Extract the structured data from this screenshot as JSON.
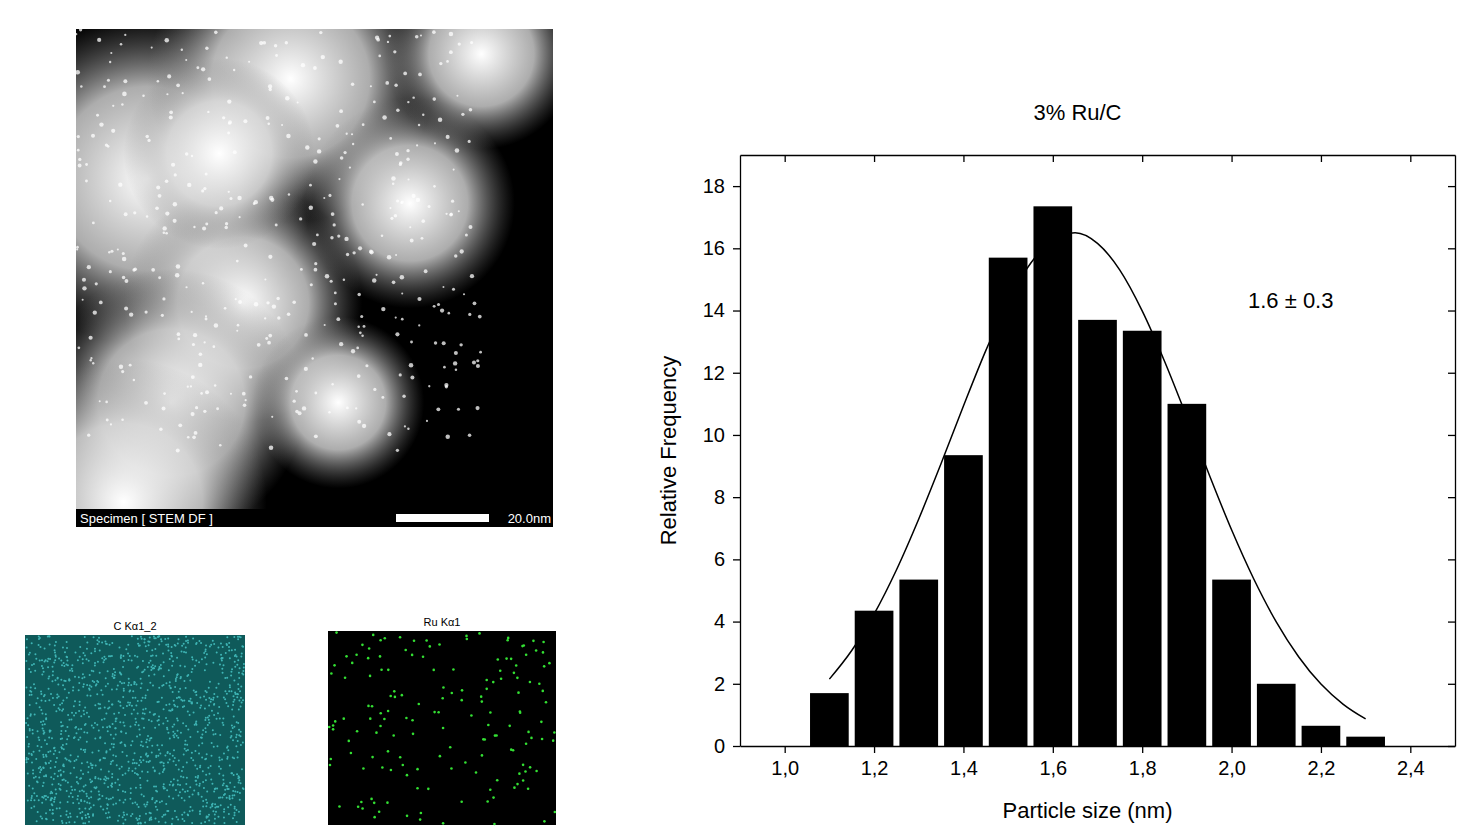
{
  "chart_data": {
    "type": "histogram",
    "title": "3% Ru/C",
    "x_label": "Particle size (nm)",
    "y_label": "Relative Frequency",
    "annotation": "1.6 ± 0.3",
    "bins": [
      1.05,
      1.15,
      1.25,
      1.35,
      1.45,
      1.55,
      1.65,
      1.75,
      1.85,
      1.95,
      2.05,
      2.15,
      2.25,
      2.35
    ],
    "values": [
      1.7,
      4.35,
      5.35,
      9.35,
      15.7,
      17.35,
      13.7,
      13.35,
      11.0,
      5.35,
      2.0,
      0.65,
      0.3
    ],
    "color": "#000000",
    "fit": {
      "x": [
        1.1,
        1.15,
        1.2,
        1.25,
        1.3,
        1.35,
        1.4,
        1.45,
        1.5,
        1.55,
        1.6,
        1.65,
        1.7,
        1.75,
        1.8,
        1.85,
        1.9,
        1.95,
        2.0,
        2.05,
        2.1,
        2.15,
        2.2,
        2.25,
        2.3
      ],
      "y": [
        2.15,
        3.07,
        4.24,
        5.66,
        7.3,
        9.08,
        10.93,
        12.71,
        14.29,
        15.51,
        16.27,
        16.5,
        16.16,
        15.3,
        13.99,
        12.37,
        10.57,
        8.72,
        6.95,
        5.36,
        3.99,
        2.87,
        1.99,
        1.34,
        0.87
      ]
    },
    "xlim": [
      0.9,
      2.5
    ],
    "xticks": [
      {
        "value": 1.0,
        "label": "1,0"
      },
      {
        "value": 1.2,
        "label": "1,2"
      },
      {
        "value": 1.4,
        "label": "1,4"
      },
      {
        "value": 1.6,
        "label": "1,6"
      },
      {
        "value": 1.8,
        "label": "1,8"
      },
      {
        "value": 2.0,
        "label": "2,0"
      },
      {
        "value": 2.2,
        "label": "2,2"
      },
      {
        "value": 2.4,
        "label": "2,4"
      }
    ],
    "ylim": [
      0,
      19
    ],
    "yticks": [
      0,
      2,
      4,
      6,
      8,
      10,
      12,
      14,
      16,
      18
    ],
    "grid": false
  },
  "images": {
    "micrograph": {
      "caption": "Specimen [ STEM DF ]",
      "scale_bar": "20.0nm"
    },
    "maps": [
      {
        "title": "C Kα1_2"
      },
      {
        "title": "Ru Kα1"
      }
    ]
  }
}
